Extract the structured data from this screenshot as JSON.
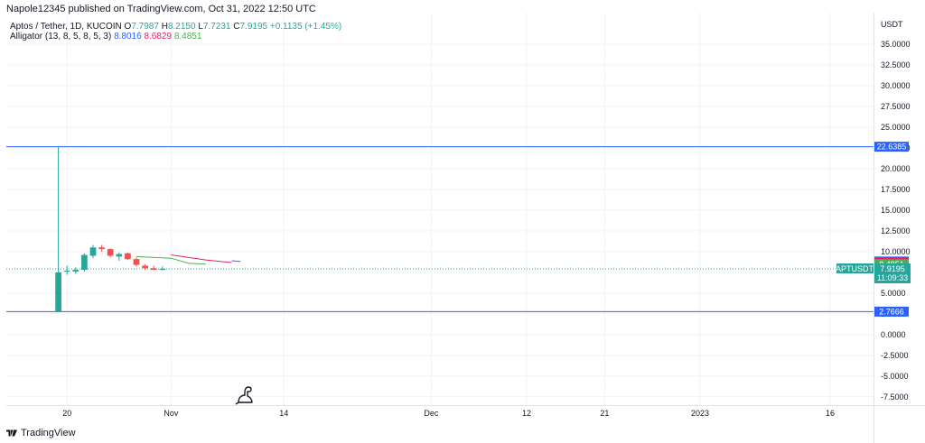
{
  "header": {
    "published": "Napole12345 published on TradingView.com, Oct 31, 2022 12:50 UTC"
  },
  "legend": {
    "symbol": "Aptos / Tether, 1D, KUCOIN",
    "o_label": "O",
    "o": "7.7987",
    "h_label": "H",
    "h": "8.2150",
    "l_label": "L",
    "l": "7.7231",
    "c_label": "C",
    "c": "7.9195",
    "change": "+0.1135 (+1.45%)",
    "alligator_label": "Alligator (13, 8, 5, 8, 5, 3)",
    "jaw": "8.8016",
    "teeth": "8.6829",
    "lips": "8.4851"
  },
  "footer": {
    "brand": "TradingView"
  },
  "colors": {
    "up": "#26a69a",
    "down": "#ef5350",
    "jaw": "#2962ff",
    "teeth": "#e91e63",
    "lips": "#4caf50",
    "hline": "#2962ff",
    "grid": "#f0f3fa"
  },
  "chart_data": {
    "type": "candlestick",
    "currency": "USDT",
    "ylim": [
      -8.5,
      38.8
    ],
    "yticks": [
      "35.0000",
      "32.5000",
      "30.0000",
      "27.5000",
      "25.0000",
      "22.5000",
      "20.0000",
      "17.5000",
      "15.0000",
      "12.5000",
      "10.0000",
      "7.5000",
      "5.0000",
      "2.5000",
      "0.0000",
      "-2.5000",
      "-5.0000",
      "-7.5000"
    ],
    "ytick_values": [
      35,
      32.5,
      30,
      27.5,
      25,
      22.5,
      20,
      17.5,
      15,
      12.5,
      10,
      7.5,
      5,
      2.5,
      0,
      -2.5,
      -5,
      -7.5
    ],
    "x_domain": [
      "2022-10-13",
      "2023-01-21"
    ],
    "xticks": [
      {
        "label": "20",
        "date": "2022-10-20"
      },
      {
        "label": "Nov",
        "date": "2022-11-01"
      },
      {
        "label": "14",
        "date": "2022-11-14"
      },
      {
        "label": "Dec",
        "date": "2022-12-01"
      },
      {
        "label": "12",
        "date": "2022-12-12"
      },
      {
        "label": "21",
        "date": "2022-12-21"
      },
      {
        "label": "2023",
        "date": "2023-01-01"
      },
      {
        "label": "16",
        "date": "2023-01-16"
      }
    ],
    "candles": [
      {
        "date": "2022-10-19",
        "o": 2.7666,
        "h": 22.6385,
        "l": 2.7666,
        "c": 7.5
      },
      {
        "date": "2022-10-20",
        "o": 7.6,
        "h": 8.3,
        "l": 7.2,
        "c": 7.7
      },
      {
        "date": "2022-10-21",
        "o": 7.6,
        "h": 8.1,
        "l": 7.3,
        "c": 7.8
      },
      {
        "date": "2022-10-22",
        "o": 7.8,
        "h": 9.8,
        "l": 7.6,
        "c": 9.6
      },
      {
        "date": "2022-10-23",
        "o": 9.5,
        "h": 10.8,
        "l": 9.2,
        "c": 10.5
      },
      {
        "date": "2022-10-24",
        "o": 10.5,
        "h": 10.8,
        "l": 10.0,
        "c": 10.3
      },
      {
        "date": "2022-10-25",
        "o": 10.3,
        "h": 10.4,
        "l": 9.3,
        "c": 9.5
      },
      {
        "date": "2022-10-26",
        "o": 9.4,
        "h": 9.9,
        "l": 8.9,
        "c": 9.7
      },
      {
        "date": "2022-10-27",
        "o": 9.8,
        "h": 9.9,
        "l": 9.0,
        "c": 9.1
      },
      {
        "date": "2022-10-28",
        "o": 9.1,
        "h": 9.3,
        "l": 8.2,
        "c": 8.4
      },
      {
        "date": "2022-10-29",
        "o": 8.3,
        "h": 8.5,
        "l": 7.8,
        "c": 8.0
      },
      {
        "date": "2022-10-30",
        "o": 8.0,
        "h": 8.3,
        "l": 7.8,
        "c": 7.8
      },
      {
        "date": "2022-10-31",
        "o": 7.7987,
        "h": 8.215,
        "l": 7.7231,
        "c": 7.9195
      }
    ],
    "alligator": {
      "lips": [
        {
          "date": "2022-10-28",
          "v": 9.4
        },
        {
          "date": "2022-11-01",
          "v": 9.2
        },
        {
          "date": "2022-11-03",
          "v": 8.6
        },
        {
          "date": "2022-11-05",
          "v": 8.4851
        }
      ],
      "teeth": [
        {
          "date": "2022-11-01",
          "v": 9.6
        },
        {
          "date": "2022-11-05",
          "v": 9.0
        },
        {
          "date": "2022-11-08",
          "v": 8.6829
        }
      ],
      "jaw": [
        {
          "date": "2022-11-08",
          "v": 8.9
        },
        {
          "date": "2022-11-09",
          "v": 8.8016
        }
      ]
    },
    "hlines": [
      {
        "value": 22.6385,
        "label": "22.6385"
      },
      {
        "value": 2.7666,
        "label": "2.7666"
      }
    ],
    "price_labels": [
      {
        "value": 8.8016,
        "label": "8.8016",
        "color": "#2962ff"
      },
      {
        "value": 8.6829,
        "label": "8.6829",
        "color": "#e91e63"
      },
      {
        "value": 8.4851,
        "label": "8.4851",
        "color": "#4caf50"
      }
    ],
    "last_price": {
      "value": 7.9195,
      "label": "7.9195",
      "countdown": "11:09:33",
      "symbol": "APTUSDT"
    }
  }
}
